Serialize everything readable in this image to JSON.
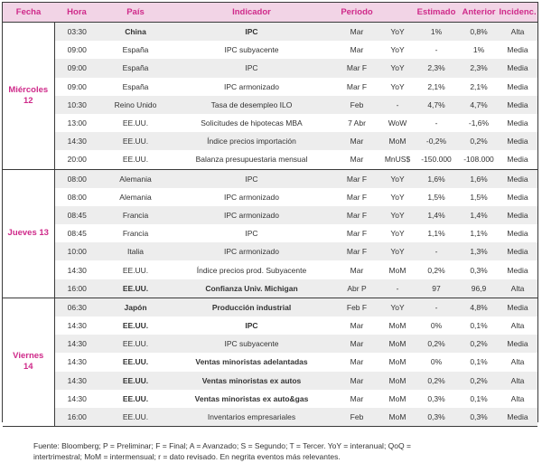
{
  "headers": [
    "Fecha",
    "Hora",
    "País",
    "Indicador",
    "Periodo",
    "",
    "Estimado",
    "Anterior",
    "Incidenc."
  ],
  "colors": {
    "header_bg": "#f2d4e6",
    "accent": "#cf2a8a",
    "row_shade": "#ededed",
    "border": "#3a3a3a"
  },
  "days": [
    {
      "name": "Miércoles",
      "num": "12",
      "rows": [
        {
          "hora": "03:30",
          "pais": "China",
          "ind": "IPC",
          "per": "Mar",
          "tipo": "YoY",
          "est": "1%",
          "ant": "0,8%",
          "inc": "Alta",
          "bold": true
        },
        {
          "hora": "09:00",
          "pais": "España",
          "ind": "IPC subyacente",
          "per": "Mar",
          "tipo": "YoY",
          "est": "-",
          "ant": "1%",
          "inc": "Media",
          "bold": false
        },
        {
          "hora": "09:00",
          "pais": "España",
          "ind": "IPC",
          "per": "Mar F",
          "tipo": "YoY",
          "est": "2,3%",
          "ant": "2,3%",
          "inc": "Media",
          "bold": false
        },
        {
          "hora": "09:00",
          "pais": "España",
          "ind": "IPC armonizado",
          "per": "Mar F",
          "tipo": "YoY",
          "est": "2,1%",
          "ant": "2,1%",
          "inc": "Media",
          "bold": false
        },
        {
          "hora": "10:30",
          "pais": "Reino Unido",
          "ind": "Tasa de desempleo ILO",
          "per": "Feb",
          "tipo": "-",
          "est": "4,7%",
          "ant": "4,7%",
          "inc": "Media",
          "bold": false
        },
        {
          "hora": "13:00",
          "pais": "EE.UU.",
          "ind": "Solicitudes de hipotecas MBA",
          "per": "7 Abr",
          "tipo": "WoW",
          "est": "-",
          "ant": "-1,6%",
          "inc": "Media",
          "bold": false
        },
        {
          "hora": "14:30",
          "pais": "EE.UU.",
          "ind": "Índice precios importación",
          "per": "Mar",
          "tipo": "MoM",
          "est": "-0,2%",
          "ant": "0,2%",
          "inc": "Media",
          "bold": false
        },
        {
          "hora": "20:00",
          "pais": "EE.UU.",
          "ind": "Balanza presupuestaria mensual",
          "per": "Mar",
          "tipo": "MnUS$",
          "est": "-150.000",
          "ant": "-108.000",
          "inc": "Media",
          "bold": false
        }
      ]
    },
    {
      "name": "Jueves 13",
      "num": "",
      "rows": [
        {
          "hora": "08:00",
          "pais": "Alemania",
          "ind": "IPC",
          "per": "Mar F",
          "tipo": "YoY",
          "est": "1,6%",
          "ant": "1,6%",
          "inc": "Media",
          "bold": false
        },
        {
          "hora": "08:00",
          "pais": "Alemania",
          "ind": "IPC armonizado",
          "per": "Mar F",
          "tipo": "YoY",
          "est": "1,5%",
          "ant": "1,5%",
          "inc": "Media",
          "bold": false
        },
        {
          "hora": "08:45",
          "pais": "Francia",
          "ind": "IPC armonizado",
          "per": "Mar F",
          "tipo": "YoY",
          "est": "1,4%",
          "ant": "1,4%",
          "inc": "Media",
          "bold": false
        },
        {
          "hora": "08:45",
          "pais": "Francia",
          "ind": "IPC",
          "per": "Mar F",
          "tipo": "YoY",
          "est": "1,1%",
          "ant": "1,1%",
          "inc": "Media",
          "bold": false
        },
        {
          "hora": "10:00",
          "pais": "Italia",
          "ind": "IPC armonizado",
          "per": "Mar F",
          "tipo": "YoY",
          "est": "-",
          "ant": "1,3%",
          "inc": "Media",
          "bold": false
        },
        {
          "hora": "14:30",
          "pais": "EE.UU.",
          "ind": "Índice precios prod. Subyacente",
          "per": "Mar",
          "tipo": "MoM",
          "est": "0,2%",
          "ant": "0,3%",
          "inc": "Media",
          "bold": false
        },
        {
          "hora": "16:00",
          "pais": "EE.UU.",
          "ind": "Confianza Univ. Michigan",
          "per": "Abr P",
          "tipo": "-",
          "est": "97",
          "ant": "96,9",
          "inc": "Alta",
          "bold": true
        }
      ]
    },
    {
      "name": "Viernes",
      "num": "14",
      "rows": [
        {
          "hora": "06:30",
          "pais": "Japón",
          "ind": "Producción industrial",
          "per": "Feb F",
          "tipo": "YoY",
          "est": "-",
          "ant": "4,8%",
          "inc": "Media",
          "bold": true
        },
        {
          "hora": "14:30",
          "pais": "EE.UU.",
          "ind": "IPC",
          "per": "Mar",
          "tipo": "MoM",
          "est": "0%",
          "ant": "0,1%",
          "inc": "Alta",
          "bold": true
        },
        {
          "hora": "14:30",
          "pais": "EE.UU.",
          "ind": "IPC subyacente",
          "per": "Mar",
          "tipo": "MoM",
          "est": "0,2%",
          "ant": "0,2%",
          "inc": "Media",
          "bold": false
        },
        {
          "hora": "14:30",
          "pais": "EE.UU.",
          "ind": "Ventas minoristas adelantadas",
          "per": "Mar",
          "tipo": "MoM",
          "est": "0%",
          "ant": "0,1%",
          "inc": "Alta",
          "bold": true
        },
        {
          "hora": "14:30",
          "pais": "EE.UU.",
          "ind": "Ventas minoristas ex autos",
          "per": "Mar",
          "tipo": "MoM",
          "est": "0,2%",
          "ant": "0,2%",
          "inc": "Alta",
          "bold": true
        },
        {
          "hora": "14:30",
          "pais": "EE.UU.",
          "ind": "Ventas minoristas ex auto&gas",
          "per": "Mar",
          "tipo": "MoM",
          "est": "0,3%",
          "ant": "0,1%",
          "inc": "Alta",
          "bold": true
        },
        {
          "hora": "16:00",
          "pais": "EE.UU.",
          "ind": "Inventarios empresariales",
          "per": "Feb",
          "tipo": "MoM",
          "est": "0,3%",
          "ant": "0,3%",
          "inc": "Media",
          "bold": false
        }
      ]
    }
  ],
  "footnote": {
    "line1": "Fuente: Bloomberg; P = Preliminar; F = Final; A = Avanzado; S = Segundo; T = Tercer.  YoY = interanual; QoQ =",
    "line2": "intertrimestral; MoM = intermensual; r = dato revisado. En negrita eventos más relevantes."
  }
}
